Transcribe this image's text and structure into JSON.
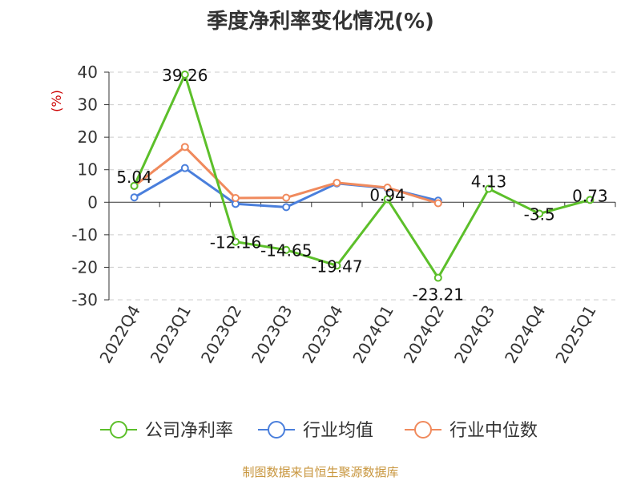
{
  "title": "季度净利率变化情况(%)",
  "source_note": "制图数据来自恒生聚源数据库",
  "chart_data": {
    "type": "line",
    "ylabel": "(%)",
    "ylim": [
      -30,
      40
    ],
    "yticks": [
      40,
      30,
      20,
      10,
      0,
      -10,
      -20,
      -30
    ],
    "grid": true,
    "legend_position": "bottom",
    "categories": [
      "2022Q4",
      "2023Q1",
      "2023Q2",
      "2023Q3",
      "2023Q4",
      "2024Q1",
      "2024Q2",
      "2024Q3",
      "2024Q4",
      "2025Q1"
    ],
    "series": [
      {
        "name": "公司净利率",
        "color": "#5cbf2a",
        "values": [
          5.04,
          39.26,
          -12.16,
          -14.65,
          -19.47,
          0.94,
          -23.21,
          4.13,
          -3.5,
          0.73
        ],
        "labels": [
          "5.04",
          "39.26",
          "-12.16",
          "-14.65",
          "-19.47",
          "0.94",
          "-23.21",
          "4.13",
          "-3.5",
          "0.73"
        ]
      },
      {
        "name": "行业均值",
        "color": "#4a7fdc",
        "values": [
          1.5,
          10.5,
          -0.5,
          -1.5,
          5.8,
          4.3,
          0.5,
          null,
          null,
          null
        ]
      },
      {
        "name": "行业中位数",
        "color": "#f08a5d",
        "values": [
          5.0,
          17.0,
          1.3,
          1.4,
          6.0,
          4.5,
          -0.3,
          null,
          null,
          null
        ]
      }
    ]
  }
}
